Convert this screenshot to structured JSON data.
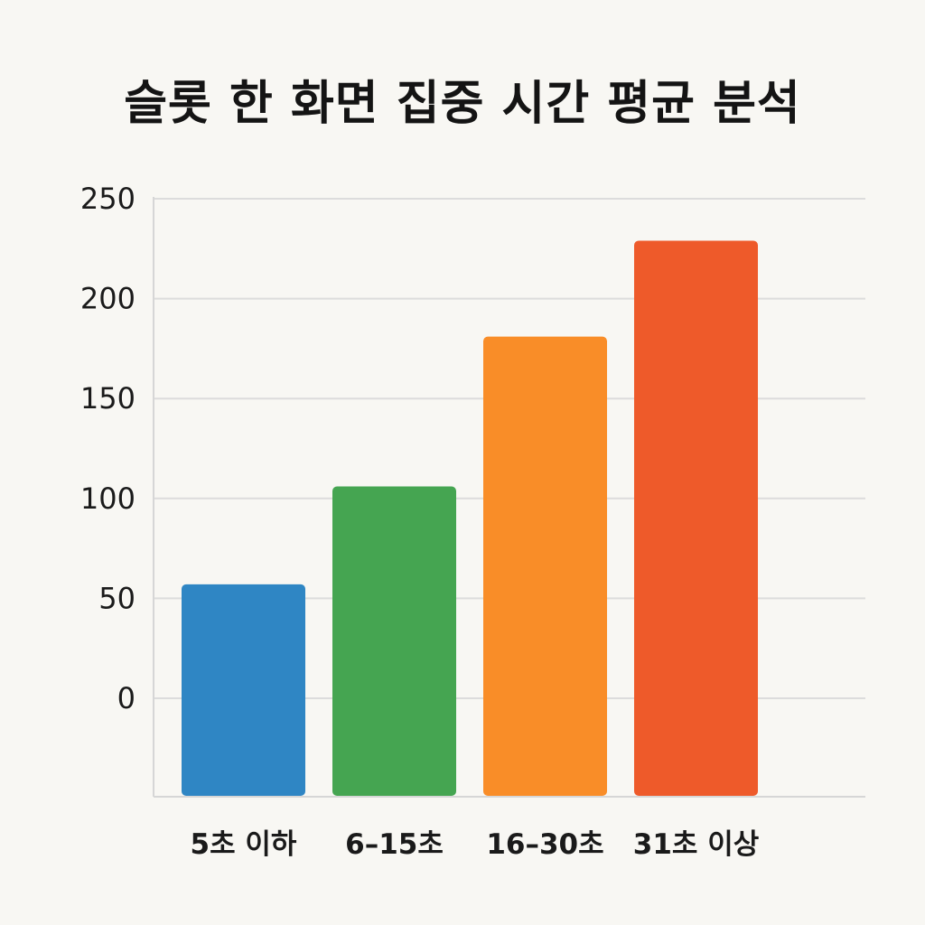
{
  "chart_data": {
    "type": "bar",
    "title": "슬롯 한 화면 집중 시간 평균 분석",
    "xlabel": "",
    "ylabel": "",
    "categories": [
      "5초 이하",
      "6–15초",
      "16–30초",
      "31초 이상"
    ],
    "values": [
      57,
      106,
      181,
      229
    ],
    "colors": [
      "#2f86c4",
      "#45a551",
      "#f98d28",
      "#ee5a2a"
    ],
    "yticks": [
      0,
      50,
      100,
      150,
      200,
      250
    ],
    "ylim": [
      0,
      250
    ],
    "grid": true,
    "legend": "none"
  }
}
